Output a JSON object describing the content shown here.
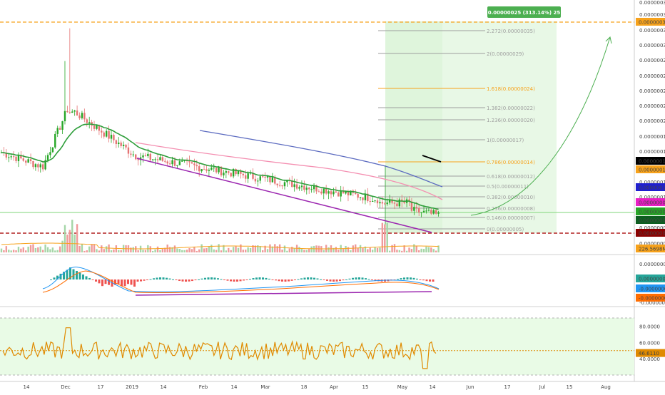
{
  "chart_data": {
    "type": "candlestick",
    "panes": [
      "price",
      "macd",
      "rsi"
    ],
    "x_axis": {
      "tick_labels": [
        "14",
        "Dec",
        "17",
        "2019",
        "14",
        "Feb",
        "14",
        "Mar",
        "18",
        "Apr",
        "15",
        "May",
        "14",
        "Jun",
        "17",
        "Jul",
        "15",
        "Aug"
      ]
    },
    "price_axis": {
      "tick_labels": [
        "0.00000036",
        "0.00000034",
        "0.00000032",
        "0.00000030",
        "0.00000028",
        "0.00000026",
        "0.00000024",
        "0.00000022",
        "0.00000020",
        "0.00000018",
        "0.00000016",
        "0.00000012",
        "0.00000010",
        "0.00000006",
        "0.00000004"
      ],
      "price_badges": [
        {
          "text": "0.00000033",
          "color": "#f7a21b",
          "price": 3.3e-07
        },
        {
          "text": "0.00000015",
          "color": "#000000",
          "price": 1.5e-07
        },
        {
          "text": "0.00000014",
          "color": "#f7a21b",
          "price": 1.4e-07
        },
        {
          "text": "0.00000011",
          "color": "#1f1fcf",
          "price": 1.1e-07
        },
        {
          "text": "0.00000009",
          "color": "#e91ec4",
          "price": 9.1e-08
        },
        {
          "text": "0.00000008",
          "color": "#26a626",
          "price": 8e-08
        },
        {
          "text": "0.00000008",
          "color": "#0d5e20",
          "price": 7.5e-08
        },
        {
          "text": "0.00000005",
          "color": "#8b0000",
          "price": 5.2e-08
        },
        {
          "text": "226.5698M",
          "color": "#f7a21b",
          "price": 4.2e-08
        }
      ]
    },
    "price_axis_range": [
      3e-08,
      3.7e-07
    ],
    "fib_levels": [
      {
        "ratio": "2.272",
        "price": "0.00000035",
        "color": "#9e9e9e"
      },
      {
        "ratio": "2",
        "price": "0.00000029",
        "color": "#9e9e9e"
      },
      {
        "ratio": "1.618",
        "price": "0.00000024",
        "color": "#f7a21b"
      },
      {
        "ratio": "1.382",
        "price": "0.00000022",
        "color": "#9e9e9e"
      },
      {
        "ratio": "1.236",
        "price": "0.00000020",
        "color": "#9e9e9e"
      },
      {
        "ratio": "1",
        "price": "0.00000017",
        "color": "#9e9e9e"
      },
      {
        "ratio": "0.786",
        "price": "0.00000014",
        "color": "#f7a21b"
      },
      {
        "ratio": "0.618",
        "price": "0.00000012",
        "color": "#9e9e9e"
      },
      {
        "ratio": "0.5",
        "price": "0.00000011",
        "color": "#9e9e9e"
      },
      {
        "ratio": "0.382",
        "price": "0.00000010",
        "color": "#9e9e9e"
      },
      {
        "ratio": "0.236",
        "price": "0.00000008",
        "color": "#9e9e9e"
      },
      {
        "ratio": "0.146",
        "price": "0.00000007",
        "color": "#9e9e9e"
      },
      {
        "ratio": "0",
        "price": "0.00000005",
        "color": "#9e9e9e"
      }
    ],
    "target_box_label": "0.00000025 (313.14%) 25",
    "macd_axis": {
      "tick_labels": [
        "0.00000001",
        "-0.00000002"
      ],
      "badges": [
        {
          "text": "0.00000000",
          "color": "#26a69a"
        },
        {
          "text": "-0.00000001",
          "color": "#2196f3"
        },
        {
          "text": "-0.00000001",
          "color": "#ff6d00"
        }
      ]
    },
    "rsi_axis": {
      "range": [
        20,
        90
      ],
      "tick_labels": [
        "80.0000",
        "60.0000",
        "40.0000"
      ],
      "value_badge": "46.6110",
      "value": 46.611
    },
    "colors": {
      "up": "#26a626",
      "down": "#e57373",
      "ema": "#2e9e3a",
      "ma_pink": "#f48fb1",
      "ma_blue": "#5c6bc0",
      "trend_purple": "#9c27b0",
      "fib_gold": "#f7a21b",
      "rsi": "#e08a00",
      "rsi_bg": "#e9fbe6",
      "target_green": "#4caf50"
    }
  }
}
